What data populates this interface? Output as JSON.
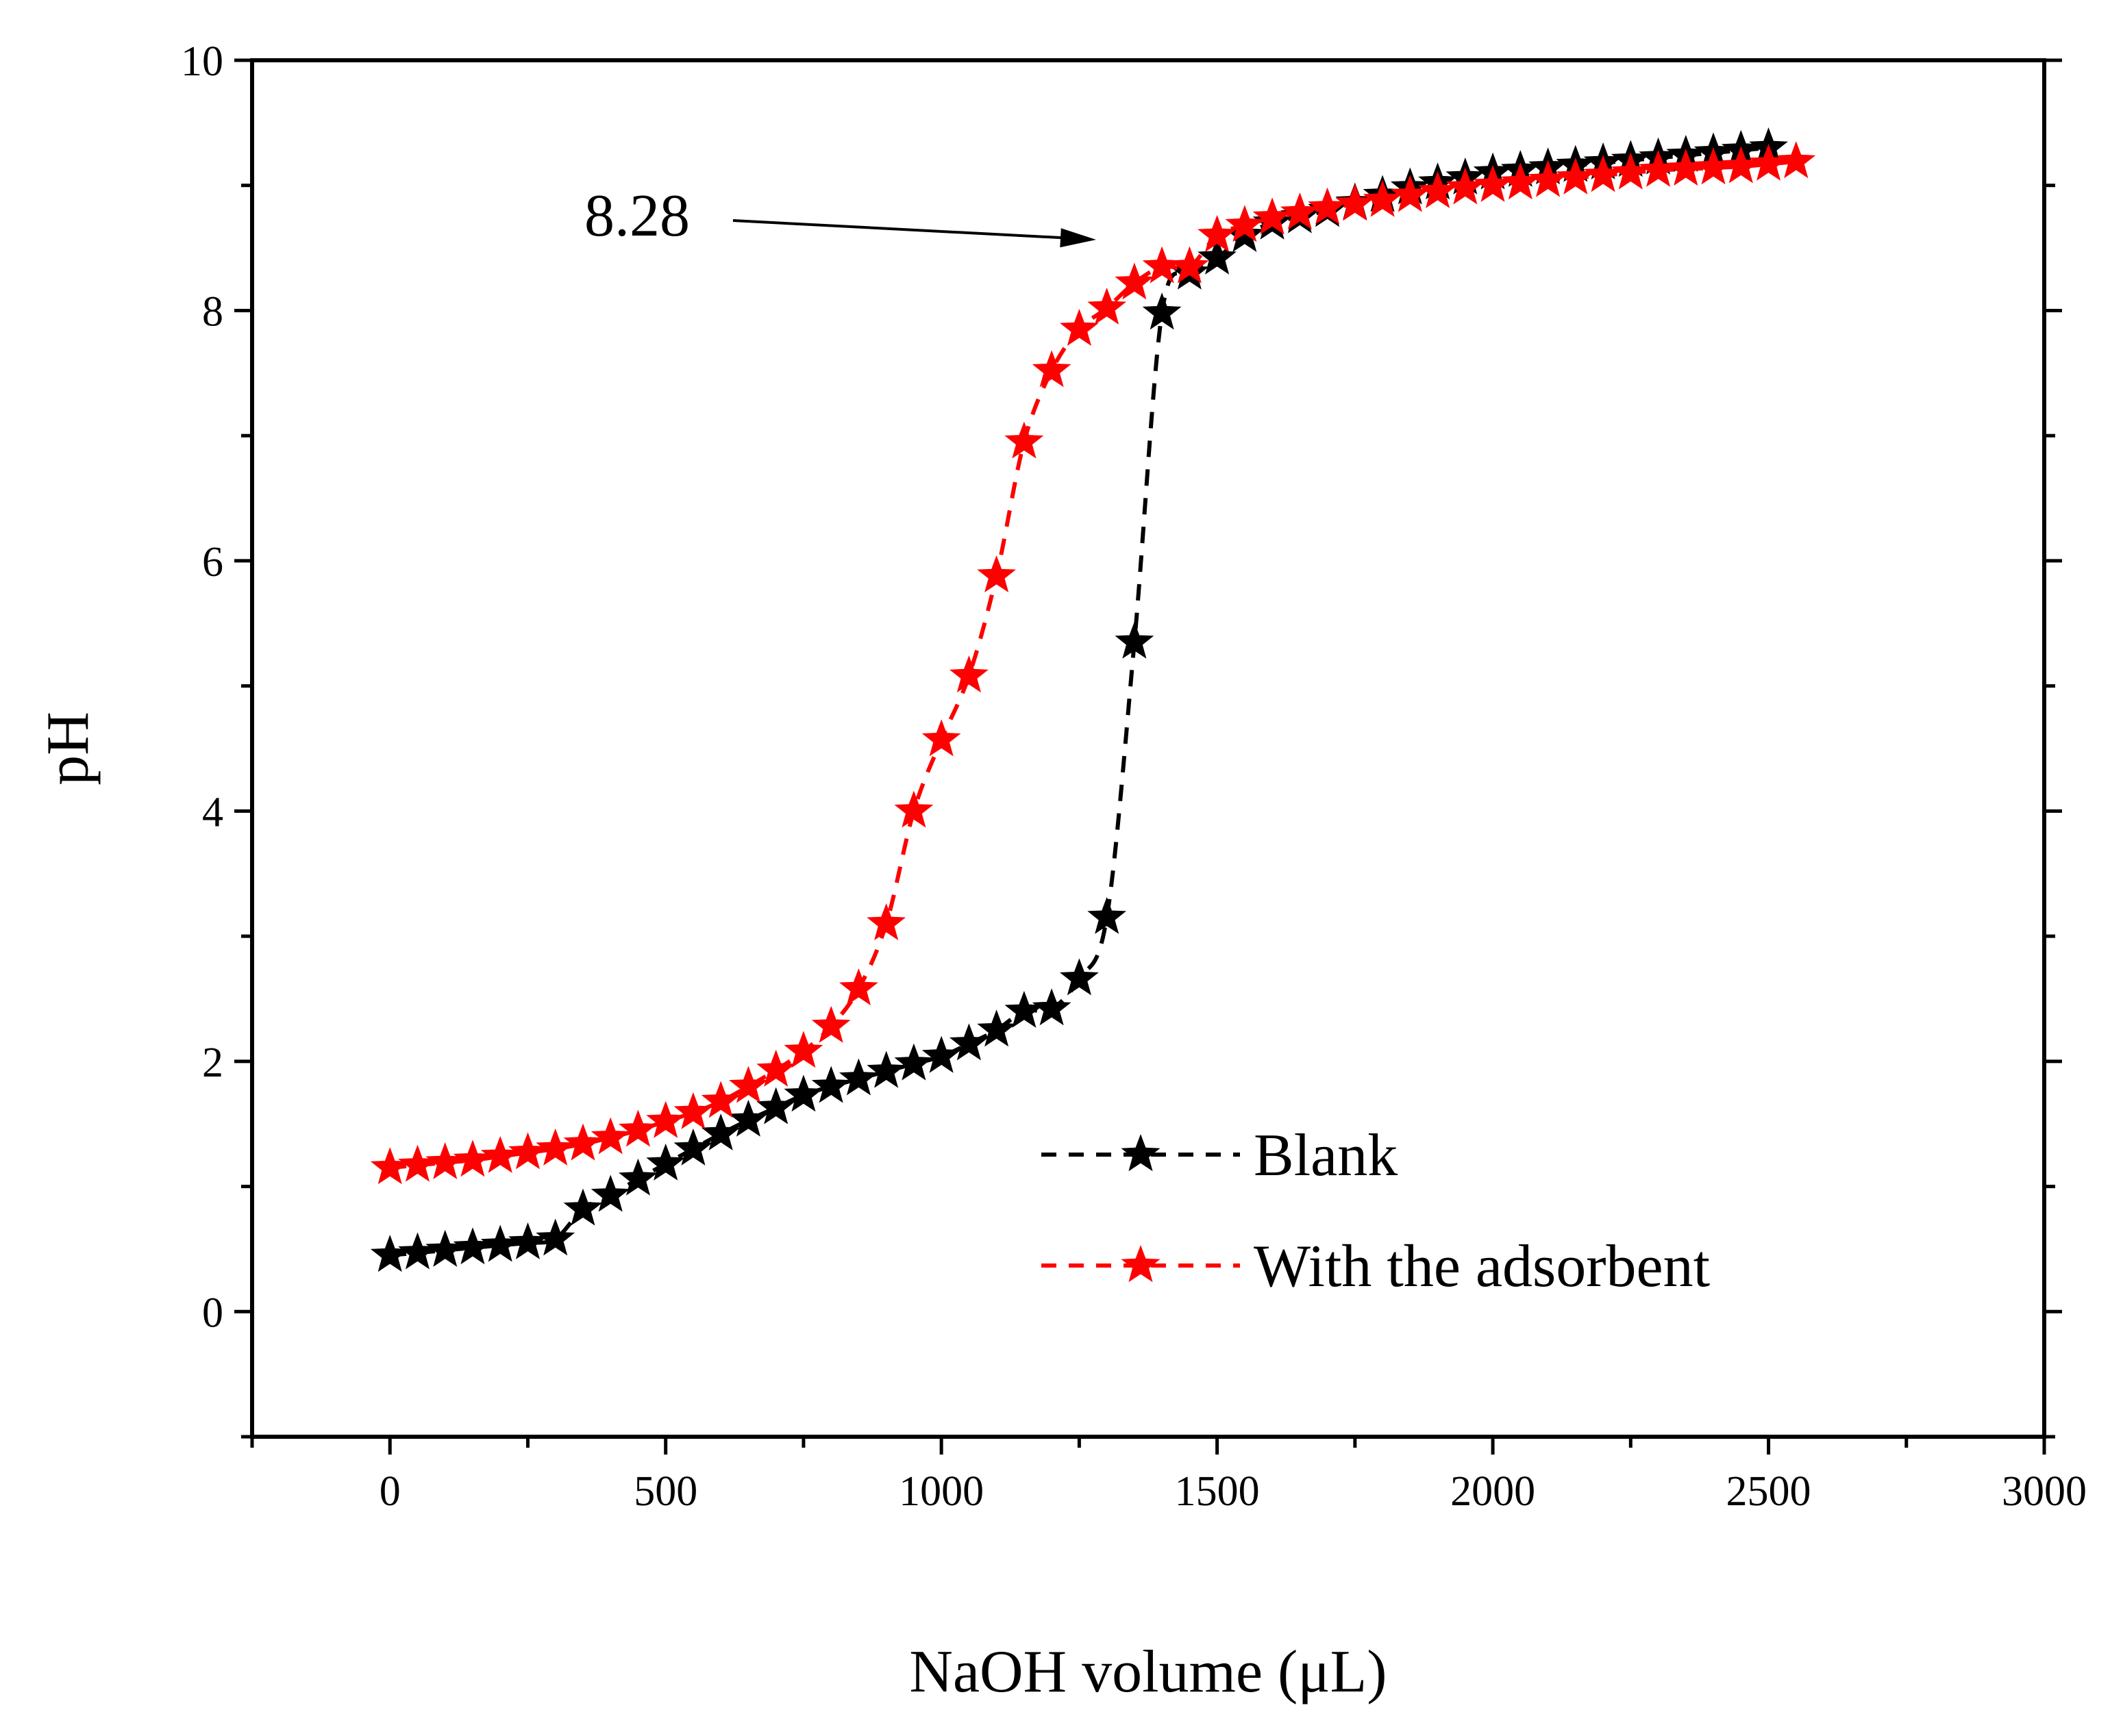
{
  "chart_data": {
    "type": "line",
    "xlabel": "NaOH volume (μL)",
    "ylabel": "pH",
    "xlim": [
      -250,
      3000
    ],
    "ylim": [
      -1,
      10
    ],
    "x_ticks": [
      0,
      500,
      1000,
      1500,
      2000,
      2500,
      3000
    ],
    "y_ticks": [
      0,
      2,
      4,
      6,
      8,
      10
    ],
    "grid": false,
    "legend_position": "bottom-right",
    "annotation": {
      "text": "8.28",
      "target": [
        1300,
        8.28
      ]
    },
    "series": [
      {
        "name": "Blank",
        "color": "#000000",
        "marker": "star",
        "line": "dashed",
        "x": [
          0,
          50,
          100,
          150,
          200,
          250,
          300,
          350,
          400,
          450,
          500,
          550,
          600,
          650,
          700,
          750,
          800,
          850,
          900,
          950,
          1000,
          1050,
          1100,
          1150,
          1200,
          1250,
          1300,
          1350,
          1400,
          1450,
          1500,
          1550,
          1600,
          1650,
          1700,
          1750,
          1800,
          1850,
          1900,
          1950,
          2000,
          2050,
          2100,
          2150,
          2200,
          2250,
          2300,
          2350,
          2400,
          2450,
          2500
        ],
        "y": [
          0.45,
          0.47,
          0.49,
          0.51,
          0.53,
          0.55,
          0.58,
          0.82,
          0.93,
          1.06,
          1.18,
          1.3,
          1.42,
          1.53,
          1.63,
          1.73,
          1.8,
          1.86,
          1.92,
          1.98,
          2.04,
          2.14,
          2.25,
          2.4,
          2.42,
          2.66,
          3.15,
          5.35,
          7.98,
          8.3,
          8.42,
          8.6,
          8.7,
          8.75,
          8.8,
          8.86,
          8.92,
          8.98,
          9.02,
          9.06,
          9.1,
          9.12,
          9.14,
          9.16,
          9.18,
          9.2,
          9.22,
          9.24,
          9.26,
          9.28,
          9.3
        ]
      },
      {
        "name": "With the adsorbent",
        "color": "#ff0000",
        "marker": "star",
        "line": "dashed",
        "x": [
          0,
          50,
          100,
          150,
          200,
          250,
          300,
          350,
          400,
          450,
          500,
          550,
          600,
          650,
          700,
          750,
          800,
          850,
          900,
          950,
          1000,
          1050,
          1100,
          1150,
          1200,
          1250,
          1300,
          1350,
          1400,
          1450,
          1500,
          1550,
          1600,
          1650,
          1700,
          1750,
          1800,
          1850,
          1900,
          1950,
          2000,
          2050,
          2100,
          2150,
          2200,
          2250,
          2300,
          2350,
          2400,
          2450,
          2500,
          2550
        ],
        "y": [
          1.15,
          1.17,
          1.19,
          1.21,
          1.24,
          1.27,
          1.3,
          1.34,
          1.39,
          1.45,
          1.52,
          1.59,
          1.68,
          1.8,
          1.93,
          2.08,
          2.28,
          2.58,
          3.1,
          4.0,
          4.57,
          5.08,
          5.88,
          6.95,
          7.52,
          7.85,
          8.02,
          8.22,
          8.35,
          8.35,
          8.6,
          8.68,
          8.74,
          8.78,
          8.82,
          8.85,
          8.88,
          8.92,
          8.95,
          8.98,
          9.0,
          9.02,
          9.04,
          9.06,
          9.08,
          9.1,
          9.12,
          9.13,
          9.14,
          9.15,
          9.17,
          9.19
        ]
      }
    ]
  }
}
